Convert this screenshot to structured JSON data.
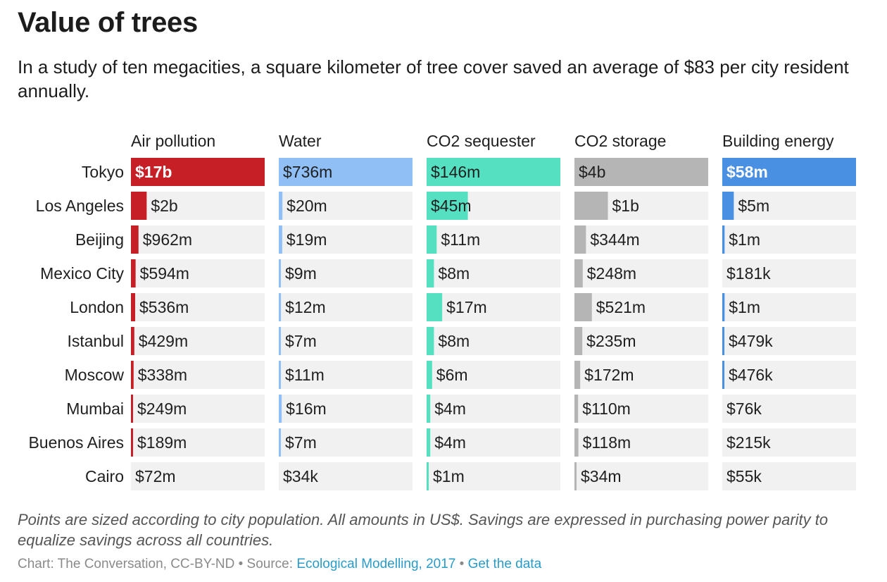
{
  "title": "Value of trees",
  "subtitle": "In a study of ten megacities, a square kilometer of tree cover saved an average of $83 per city resident annually.",
  "note": "Points are sized according to city population. All amounts in US$. Savings are expressed in purchasing power parity to equalize savings across all countries.",
  "credit": {
    "text": "Chart: The Conversation, CC-BY-ND • Source:",
    "source_link": "Ecological Modelling, 2017",
    "separator": "•",
    "data_link": "Get the data"
  },
  "colors": {
    "air_pollution": "#c62026",
    "water": "#8fbff5",
    "co2_sequester": "#55e0c2",
    "co2_storage": "#b5b5b5",
    "building_energy": "#4a90e2",
    "track": "#f1f1f1"
  },
  "chart_data": {
    "type": "bar",
    "categories": [
      "Tokyo",
      "Los Angeles",
      "Beijing",
      "Mexico City",
      "London",
      "Istanbul",
      "Moscow",
      "Mumbai",
      "Buenos Aires",
      "Cairo"
    ],
    "series": [
      {
        "name": "Air pollution",
        "values": [
          17000000000,
          2000000000,
          962000000,
          594000000,
          536000000,
          429000000,
          338000000,
          249000000,
          189000000,
          72000000
        ],
        "labels": [
          "$17b",
          "$2b",
          "$962m",
          "$594m",
          "$536m",
          "$429m",
          "$338m",
          "$249m",
          "$189m",
          "$72m"
        ]
      },
      {
        "name": "Water",
        "values": [
          736000000,
          20000000,
          19000000,
          9000000,
          12000000,
          7000000,
          11000000,
          16000000,
          7000000,
          34000
        ],
        "labels": [
          "$736m",
          "$20m",
          "$19m",
          "$9m",
          "$12m",
          "$7m",
          "$11m",
          "$16m",
          "$7m",
          "$34k"
        ]
      },
      {
        "name": "CO2 sequester",
        "values": [
          146000000,
          45000000,
          11000000,
          8000000,
          17000000,
          8000000,
          6000000,
          4000000,
          4000000,
          1000000
        ],
        "labels": [
          "$146m",
          "$45m",
          "$11m",
          "$8m",
          "$17m",
          "$8m",
          "$6m",
          "$4m",
          "$4m",
          "$1m"
        ]
      },
      {
        "name": "CO2 storage",
        "values": [
          4000000000,
          1000000000,
          344000000,
          248000000,
          521000000,
          235000000,
          172000000,
          110000000,
          118000000,
          34000000
        ],
        "labels": [
          "$4b",
          "$1b",
          "$344m",
          "$248m",
          "$521m",
          "$235m",
          "$172m",
          "$110m",
          "$118m",
          "$34m"
        ]
      },
      {
        "name": "Building energy",
        "values": [
          58000000,
          5000000,
          1000000,
          181000,
          1000000,
          479000,
          476000,
          76000,
          215000,
          55000
        ],
        "labels": [
          "$58m",
          "$5m",
          "$1m",
          "$181k",
          "$1m",
          "$479k",
          "$476k",
          "$76k",
          "$215k",
          "$55k"
        ]
      }
    ]
  }
}
